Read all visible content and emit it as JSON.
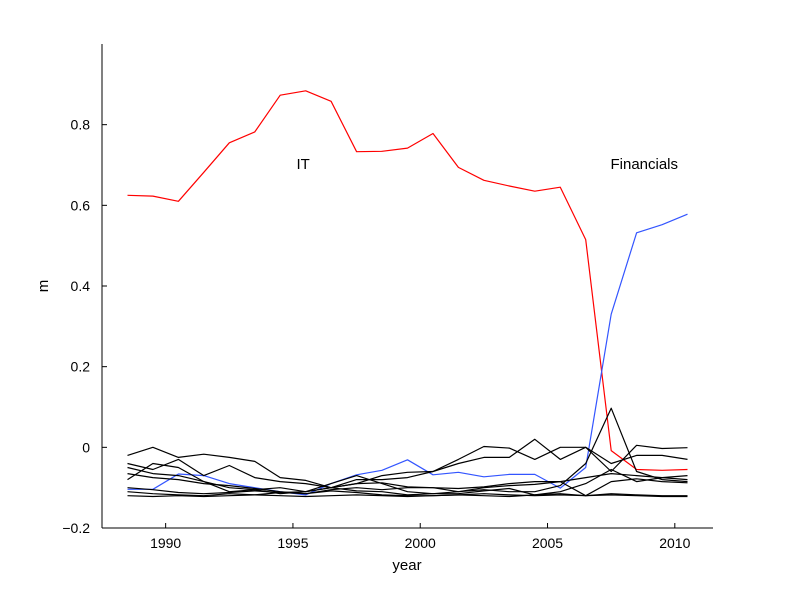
{
  "chart_data": {
    "type": "line",
    "xlabel": "year",
    "ylabel": "m",
    "xlim": [
      1987.5,
      2011.5
    ],
    "ylim": [
      -0.2,
      1.0
    ],
    "xticks": [
      1990,
      1995,
      2000,
      2005,
      2010
    ],
    "yticks": [
      -0.2,
      0,
      0.2,
      0.4,
      0.6,
      0.8
    ],
    "ytick_labels": [
      "−0.2",
      "0",
      "0.2",
      "0.4",
      "0.6",
      "0.8"
    ],
    "grid": false,
    "annotations": [
      {
        "text": "IT",
        "x": 1995.4,
        "y": 0.69
      },
      {
        "text": "Financials",
        "x": 2008.8,
        "y": 0.69
      }
    ],
    "x": [
      1988.5,
      1989.5,
      1990.5,
      1991.5,
      1992.5,
      1993.5,
      1994.5,
      1995.5,
      1996.5,
      1997.5,
      1998.5,
      1999.5,
      2000.5,
      2001.5,
      2002.5,
      2003.5,
      2004.5,
      2005.5,
      2006.5,
      2007.5,
      2008.5,
      2009.5,
      2010.5
    ],
    "series": [
      {
        "color": "#ff0000",
        "values": [
          0.625,
          0.623,
          0.61,
          0.682,
          0.755,
          0.782,
          0.873,
          0.884,
          0.858,
          0.733,
          0.734,
          0.742,
          0.778,
          0.694,
          0.662,
          0.648,
          0.635,
          0.645,
          0.515,
          -0.008,
          -0.055,
          -0.057,
          -0.055
        ]
      },
      {
        "color": "#3355ff",
        "values": [
          -0.104,
          -0.104,
          -0.066,
          -0.07,
          -0.09,
          -0.1,
          -0.11,
          -0.118,
          -0.09,
          -0.068,
          -0.057,
          -0.031,
          -0.068,
          -0.062,
          -0.073,
          -0.067,
          -0.067,
          -0.101,
          -0.05,
          0.33,
          0.532,
          0.552,
          0.578
        ]
      },
      {
        "color": "#000000",
        "values": [
          -0.02,
          0.0,
          -0.025,
          -0.017,
          -0.025,
          -0.035,
          -0.075,
          -0.082,
          -0.1,
          -0.09,
          -0.07,
          -0.062,
          -0.06,
          -0.03,
          0.002,
          -0.002,
          -0.03,
          0.0,
          0.0,
          -0.06,
          0.005,
          -0.003,
          -0.001
        ]
      },
      {
        "color": "#000000",
        "values": [
          -0.04,
          -0.055,
          -0.03,
          -0.07,
          -0.045,
          -0.075,
          -0.085,
          -0.09,
          -0.1,
          -0.08,
          -0.08,
          -0.075,
          -0.06,
          -0.04,
          -0.025,
          -0.025,
          0.02,
          -0.03,
          0.0,
          -0.04,
          -0.02,
          -0.02,
          -0.03
        ]
      },
      {
        "color": "#000000",
        "values": [
          -0.05,
          -0.065,
          -0.07,
          -0.085,
          -0.1,
          -0.105,
          -0.1,
          -0.11,
          -0.09,
          -0.07,
          -0.09,
          -0.11,
          -0.115,
          -0.11,
          -0.105,
          -0.11,
          -0.11,
          -0.095,
          -0.04,
          0.097,
          -0.06,
          -0.08,
          -0.085
        ]
      },
      {
        "color": "#000000",
        "values": [
          -0.065,
          -0.075,
          -0.08,
          -0.09,
          -0.095,
          -0.102,
          -0.11,
          -0.115,
          -0.105,
          -0.1,
          -0.105,
          -0.1,
          -0.1,
          -0.11,
          -0.1,
          -0.095,
          -0.092,
          -0.085,
          -0.075,
          -0.065,
          -0.07,
          -0.075,
          -0.07
        ]
      },
      {
        "color": "#000000",
        "values": [
          -0.08,
          -0.04,
          -0.05,
          -0.085,
          -0.11,
          -0.105,
          -0.115,
          -0.11,
          -0.1,
          -0.108,
          -0.11,
          -0.118,
          -0.115,
          -0.115,
          -0.108,
          -0.102,
          -0.118,
          -0.11,
          -0.09,
          -0.055,
          -0.085,
          -0.075,
          -0.08
        ]
      },
      {
        "color": "#000000",
        "values": [
          -0.11,
          -0.115,
          -0.118,
          -0.12,
          -0.115,
          -0.118,
          -0.112,
          -0.115,
          -0.108,
          -0.112,
          -0.118,
          -0.12,
          -0.12,
          -0.118,
          -0.12,
          -0.122,
          -0.118,
          -0.115,
          -0.12,
          -0.118,
          -0.12,
          -0.122,
          -0.122
        ]
      },
      {
        "color": "#000000",
        "values": [
          -0.12,
          -0.122,
          -0.12,
          -0.122,
          -0.12,
          -0.118,
          -0.12,
          -0.122,
          -0.12,
          -0.118,
          -0.12,
          -0.122,
          -0.12,
          -0.118,
          -0.115,
          -0.118,
          -0.12,
          -0.118,
          -0.12,
          -0.115,
          -0.118,
          -0.12,
          -0.12
        ]
      },
      {
        "color": "#000000",
        "values": [
          -0.1,
          -0.105,
          -0.112,
          -0.115,
          -0.112,
          -0.108,
          -0.112,
          -0.11,
          -0.1,
          -0.09,
          -0.088,
          -0.098,
          -0.1,
          -0.102,
          -0.098,
          -0.09,
          -0.085,
          -0.085,
          -0.12,
          -0.085,
          -0.078,
          -0.085,
          -0.088
        ]
      }
    ]
  }
}
